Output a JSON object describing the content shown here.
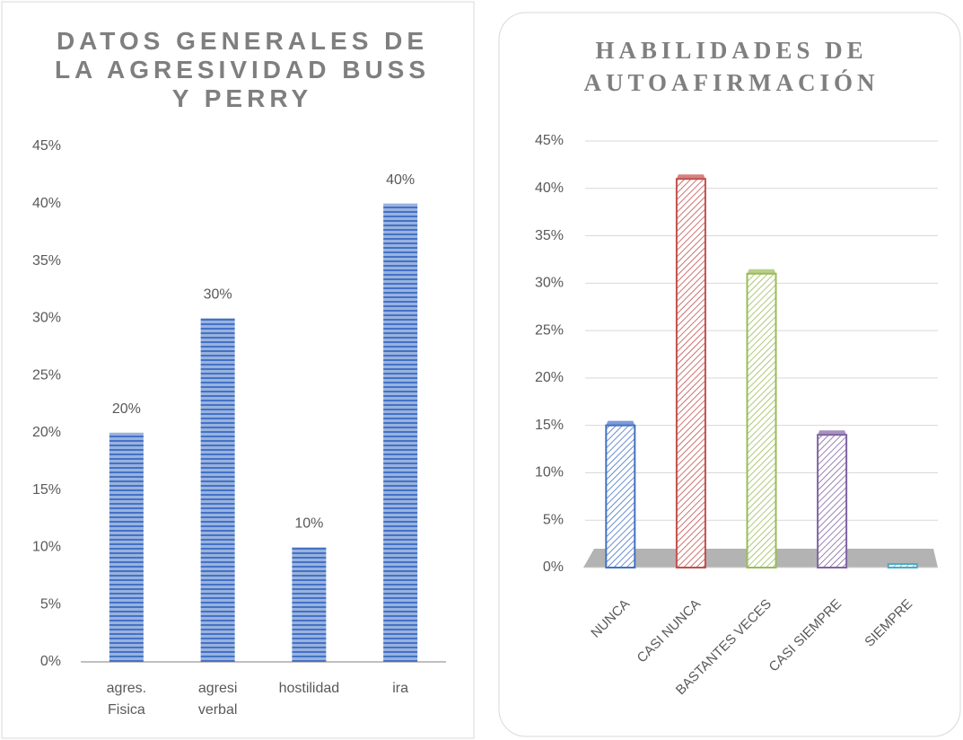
{
  "chart_data": [
    {
      "type": "bar",
      "title": "DATOS GENERALES DE LA AGRESIVIDAD BUSS Y PERRY",
      "categories": [
        "agres. Fisica",
        "agresi verbal",
        "hostilidad",
        "ira"
      ],
      "values": [
        20,
        30,
        10,
        40
      ],
      "value_labels": [
        "20%",
        "30%",
        "10%",
        "40%"
      ],
      "color": "#4472c4",
      "ylim": [
        0,
        45
      ],
      "yticks": [
        {
          "value": 0,
          "label": "0%"
        },
        {
          "value": 5,
          "label": "5%"
        },
        {
          "value": 10,
          "label": "10%"
        },
        {
          "value": 15,
          "label": "15%"
        },
        {
          "value": 20,
          "label": "20%"
        },
        {
          "value": 25,
          "label": "25%"
        },
        {
          "value": 30,
          "label": "30%"
        },
        {
          "value": 35,
          "label": "35%"
        },
        {
          "value": 40,
          "label": "40%"
        },
        {
          "value": 45,
          "label": "45%"
        }
      ],
      "grid": false
    },
    {
      "type": "bar3d",
      "title": "HABILIDADES DE AUTOAFIRMACIÓN",
      "categories": [
        "NUNCA",
        "CASI NUNCA",
        "BASTANTES VECES",
        "CASI SIEMPRE",
        "SIEMPRE"
      ],
      "values": [
        15,
        41,
        31,
        14,
        0
      ],
      "colors": [
        "#4472c4",
        "#c0504d",
        "#9bbb59",
        "#8064a2",
        "#4bacc6"
      ],
      "ylim": [
        0,
        45
      ],
      "yticks": [
        {
          "value": 0,
          "label": "0%"
        },
        {
          "value": 5,
          "label": "5%"
        },
        {
          "value": 10,
          "label": "10%"
        },
        {
          "value": 15,
          "label": "15%"
        },
        {
          "value": 20,
          "label": "20%"
        },
        {
          "value": 25,
          "label": "25%"
        },
        {
          "value": 30,
          "label": "30%"
        },
        {
          "value": 35,
          "label": "35%"
        },
        {
          "value": 40,
          "label": "40%"
        },
        {
          "value": 45,
          "label": "45%"
        }
      ],
      "grid": true
    }
  ]
}
